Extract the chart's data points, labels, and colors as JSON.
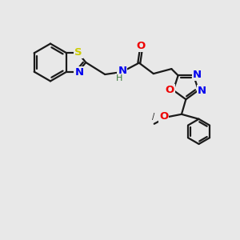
{
  "bg_color": "#e8e8e8",
  "bond_color": "#1a1a1a",
  "N_color": "#0000ee",
  "O_color": "#ee0000",
  "S_color": "#cccc00",
  "H_color": "#3a7a3a",
  "lw": 1.6,
  "fig_size": [
    3.0,
    3.0
  ],
  "dpi": 100,
  "xlim": [
    0,
    10
  ],
  "ylim": [
    0,
    10
  ]
}
